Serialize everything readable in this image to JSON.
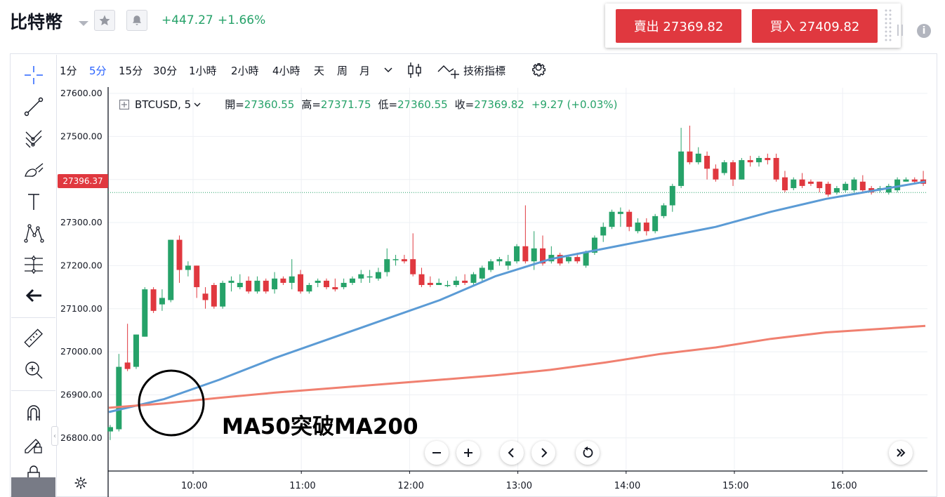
{
  "header": {
    "title": "比特幣",
    "change_abs": "+447.27",
    "change_pct": "+1.66%"
  },
  "trade": {
    "sell_label": "賣出 27369.82",
    "buy_label": "買入 27409.82"
  },
  "timeframes": [
    {
      "label": "1分",
      "active": false
    },
    {
      "label": "5分",
      "active": true
    },
    {
      "label": "15分",
      "active": false
    },
    {
      "label": "30分",
      "active": false
    },
    {
      "label": "1小時",
      "active": false
    },
    {
      "label": "2小時",
      "active": false
    },
    {
      "label": "4小時",
      "active": false
    },
    {
      "label": "天",
      "active": false
    },
    {
      "label": "周",
      "active": false
    },
    {
      "label": "月",
      "active": false
    }
  ],
  "toolbar": {
    "indicators_label": "技術指標"
  },
  "legend": {
    "symbol": "BTCUSD, 5",
    "open_label": "開=",
    "open": "27360.55",
    "high_label": "高=",
    "high": "27371.75",
    "low_label": "低=",
    "low": "27360.55",
    "close_label": "收=",
    "close": "27369.82",
    "change": "+9.27 (+0.03%)"
  },
  "price_tag": "27396.37",
  "annotation": "MA50突破MA200",
  "colors": {
    "up": "#26a269",
    "down": "#e0383f",
    "ma50": "#5b9bd5",
    "ma200": "#f08070",
    "accent": "#2962ff"
  },
  "icons": [
    "crosshair-icon",
    "trend-line-icon",
    "pitchfork-icon",
    "brush-icon",
    "text-icon",
    "pattern-icon",
    "measure-icon",
    "arrow-left-icon",
    "ruler-icon",
    "zoom-in-icon",
    "magnet-icon",
    "lock-pencil-icon",
    "lock-icon",
    "star-icon",
    "bell-icon",
    "info-icon",
    "gear-icon"
  ],
  "chart_data": {
    "type": "candlestick",
    "title": "",
    "y_ticks": [
      "27600.00",
      "27500.00",
      "27400.00",
      "27300.00",
      "27200.00",
      "27100.00",
      "27000.00",
      "26900.00",
      "26800.00"
    ],
    "y_range": [
      26755,
      27620
    ],
    "x_ticks": [
      "10:00",
      "11:00",
      "12:00",
      "13:00",
      "14:00",
      "15:00",
      "16:00"
    ],
    "last_price_line": 27369.82,
    "candles": [
      [
        26815,
        26825,
        26795,
        26830
      ],
      [
        26820,
        26965,
        26815,
        26995
      ],
      [
        26975,
        26960,
        26955,
        27065
      ],
      [
        26965,
        27040,
        26960,
        27040
      ],
      [
        27035,
        27145,
        27035,
        27150
      ],
      [
        27145,
        27095,
        27090,
        27150
      ],
      [
        27110,
        27125,
        27095,
        27145
      ],
      [
        27120,
        27260,
        27115,
        27260
      ],
      [
        27260,
        27190,
        27160,
        27270
      ],
      [
        27190,
        27200,
        27175,
        27210
      ],
      [
        27200,
        27150,
        27125,
        27200
      ],
      [
        27135,
        27120,
        27100,
        27150
      ],
      [
        27155,
        27105,
        27100,
        27160
      ],
      [
        27105,
        27160,
        27100,
        27165
      ],
      [
        27160,
        27165,
        27140,
        27175
      ],
      [
        27150,
        27160,
        27145,
        27180
      ],
      [
        27165,
        27140,
        27135,
        27175
      ],
      [
        27140,
        27165,
        27135,
        27175
      ],
      [
        27165,
        27140,
        27135,
        27170
      ],
      [
        27145,
        27170,
        27135,
        27185
      ],
      [
        27170,
        27160,
        27155,
        27175
      ],
      [
        27160,
        27175,
        27145,
        27215
      ],
      [
        27180,
        27140,
        27135,
        27190
      ],
      [
        27140,
        27155,
        27135,
        27160
      ],
      [
        27160,
        27165,
        27150,
        27170
      ],
      [
        27165,
        27150,
        27145,
        27170
      ],
      [
        27150,
        27145,
        27140,
        27170
      ],
      [
        27150,
        27160,
        27145,
        27170
      ],
      [
        27160,
        27170,
        27155,
        27175
      ],
      [
        27170,
        27180,
        27160,
        27190
      ],
      [
        27175,
        27175,
        27160,
        27190
      ],
      [
        27170,
        27185,
        27165,
        27195
      ],
      [
        27185,
        27215,
        27175,
        27240
      ],
      [
        27215,
        27215,
        27200,
        27225
      ],
      [
        27215,
        27210,
        27205,
        27225
      ],
      [
        27215,
        27180,
        27175,
        27275
      ],
      [
        27180,
        27155,
        27150,
        27195
      ],
      [
        27160,
        27155,
        27150,
        27175
      ],
      [
        27155,
        27160,
        27155,
        27170
      ],
      [
        27155,
        27155,
        27150,
        27165
      ],
      [
        27155,
        27165,
        27150,
        27175
      ],
      [
        27165,
        27160,
        27155,
        27180
      ],
      [
        27160,
        27180,
        27155,
        27185
      ],
      [
        27170,
        27195,
        27165,
        27200
      ],
      [
        27190,
        27210,
        27185,
        27215
      ],
      [
        27210,
        27215,
        27200,
        27220
      ],
      [
        27200,
        27210,
        27190,
        27225
      ],
      [
        27210,
        27245,
        27205,
        27250
      ],
      [
        27245,
        27210,
        27205,
        27340
      ],
      [
        27210,
        27240,
        27190,
        27280
      ],
      [
        27240,
        27205,
        27200,
        27270
      ],
      [
        27210,
        27225,
        27205,
        27245
      ],
      [
        27225,
        27205,
        27200,
        27230
      ],
      [
        27210,
        27220,
        27205,
        27225
      ],
      [
        27220,
        27210,
        27205,
        27230
      ],
      [
        27200,
        27230,
        27195,
        27235
      ],
      [
        27230,
        27265,
        27225,
        27270
      ],
      [
        27270,
        27290,
        27255,
        27300
      ],
      [
        27290,
        27325,
        27285,
        27330
      ],
      [
        27320,
        27325,
        27290,
        27335
      ],
      [
        27325,
        27290,
        27280,
        27330
      ],
      [
        27280,
        27300,
        27275,
        27310
      ],
      [
        27300,
        27280,
        27270,
        27310
      ],
      [
        27280,
        27315,
        27275,
        27320
      ],
      [
        27315,
        27340,
        27310,
        27345
      ],
      [
        27340,
        27385,
        27325,
        27390
      ],
      [
        27385,
        27465,
        27380,
        27520
      ],
      [
        27465,
        27440,
        27435,
        27525
      ],
      [
        27440,
        27460,
        27435,
        27475
      ],
      [
        27455,
        27425,
        27400,
        27465
      ],
      [
        27425,
        27400,
        27395,
        27435
      ],
      [
        27415,
        27440,
        27410,
        27445
      ],
      [
        27440,
        27400,
        27385,
        27445
      ],
      [
        27400,
        27445,
        27400,
        27450
      ],
      [
        27445,
        27440,
        27430,
        27455
      ],
      [
        27440,
        27450,
        27430,
        27455
      ],
      [
        27450,
        27445,
        27435,
        27460
      ],
      [
        27450,
        27400,
        27395,
        27460
      ],
      [
        27405,
        27375,
        27370,
        27420
      ],
      [
        27380,
        27400,
        27375,
        27405
      ],
      [
        27400,
        27385,
        27380,
        27415
      ],
      [
        27395,
        27390,
        27385,
        27400
      ],
      [
        27395,
        27380,
        27370,
        27395
      ],
      [
        27390,
        27365,
        27360,
        27395
      ],
      [
        27370,
        27380,
        27365,
        27385
      ],
      [
        27375,
        27390,
        27370,
        27395
      ],
      [
        27375,
        27400,
        27370,
        27405
      ],
      [
        27395,
        27375,
        27370,
        27410
      ],
      [
        27380,
        27370,
        27365,
        27385
      ],
      [
        27375,
        27380,
        27370,
        27385
      ],
      [
        27370,
        27385,
        27365,
        27390
      ],
      [
        27375,
        27400,
        27370,
        27405
      ],
      [
        27395,
        27400,
        27395,
        27405
      ],
      [
        27400,
        27395,
        27390,
        27405
      ],
      [
        27400,
        27390,
        27385,
        27420
      ]
    ],
    "series": [
      {
        "name": "MA50",
        "x": [
          0,
          0.5,
          1,
          1.5,
          2,
          2.5,
          3,
          3.5,
          4,
          4.5,
          5,
          5.5,
          6,
          6.5,
          7.4
        ],
        "values": [
          26860,
          26890,
          26935,
          26985,
          27030,
          27075,
          27120,
          27175,
          27215,
          27240,
          27265,
          27290,
          27325,
          27355,
          27395
        ]
      },
      {
        "name": "MA200",
        "x": [
          0,
          0.5,
          1,
          1.5,
          2,
          2.5,
          3,
          3.5,
          4,
          4.5,
          5,
          5.5,
          6,
          6.5,
          7.4
        ],
        "values": [
          26870,
          26880,
          26893,
          26905,
          26915,
          26925,
          26935,
          26945,
          26958,
          26975,
          26995,
          27010,
          27030,
          27045,
          27060
        ]
      }
    ]
  }
}
